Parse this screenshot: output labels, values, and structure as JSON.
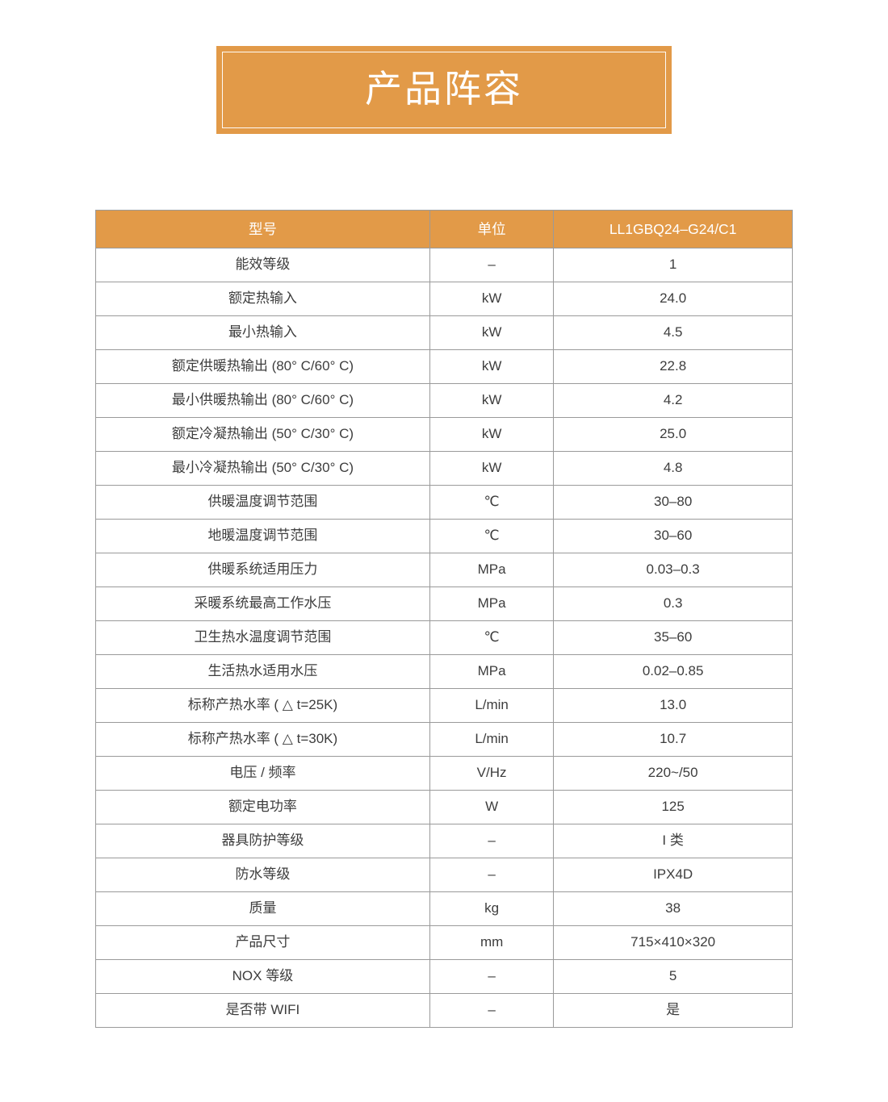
{
  "banner": {
    "title": "产品阵容",
    "bg_color": "#e29a48",
    "text_color": "#ffffff"
  },
  "table": {
    "accent_color": "#e29a48",
    "border_color": "#9a9a9a",
    "headers": {
      "model": "型号",
      "unit": "单位",
      "value": "LL1GBQ24–G24/C1"
    },
    "rows": [
      {
        "label": "能效等级",
        "unit": "–",
        "value": "1"
      },
      {
        "label": "额定热输入",
        "unit": "kW",
        "value": "24.0"
      },
      {
        "label": "最小热输入",
        "unit": "kW",
        "value": "4.5"
      },
      {
        "label": "额定供暖热输出 (80° C/60° C)",
        "unit": "kW",
        "value": "22.8"
      },
      {
        "label": "最小供暖热输出 (80° C/60° C)",
        "unit": "kW",
        "value": "4.2"
      },
      {
        "label": "额定冷凝热输出 (50° C/30° C)",
        "unit": "kW",
        "value": "25.0"
      },
      {
        "label": "最小冷凝热输出 (50° C/30° C)",
        "unit": "kW",
        "value": "4.8"
      },
      {
        "label": "供暖温度调节范围",
        "unit": "℃",
        "value": "30–80"
      },
      {
        "label": "地暖温度调节范围",
        "unit": "℃",
        "value": "30–60"
      },
      {
        "label": "供暖系统适用压力",
        "unit": "MPa",
        "value": "0.03–0.3"
      },
      {
        "label": "采暖系统最高工作水压",
        "unit": "MPa",
        "value": "0.3"
      },
      {
        "label": "卫生热水温度调节范围",
        "unit": "℃",
        "value": "35–60"
      },
      {
        "label": "生活热水适用水压",
        "unit": "MPa",
        "value": "0.02–0.85"
      },
      {
        "label": "标称产热水率 ( △ t=25K)",
        "unit": "L/min",
        "value": "13.0"
      },
      {
        "label": "标称产热水率 ( △ t=30K)",
        "unit": "L/min",
        "value": "10.7"
      },
      {
        "label": "电压 / 频率",
        "unit": "V/Hz",
        "value": "220~/50"
      },
      {
        "label": "额定电功率",
        "unit": "W",
        "value": "125"
      },
      {
        "label": "器具防护等级",
        "unit": "–",
        "value": "I 类"
      },
      {
        "label": "防水等级",
        "unit": "–",
        "value": "IPX4D"
      },
      {
        "label": "质量",
        "unit": "kg",
        "value": "38"
      },
      {
        "label": "产品尺寸",
        "unit": "mm",
        "value": "715×410×320"
      },
      {
        "label": "NOX 等级",
        "unit": "–",
        "value": "5"
      },
      {
        "label": "是否带 WIFI",
        "unit": "–",
        "value": "是"
      }
    ]
  }
}
